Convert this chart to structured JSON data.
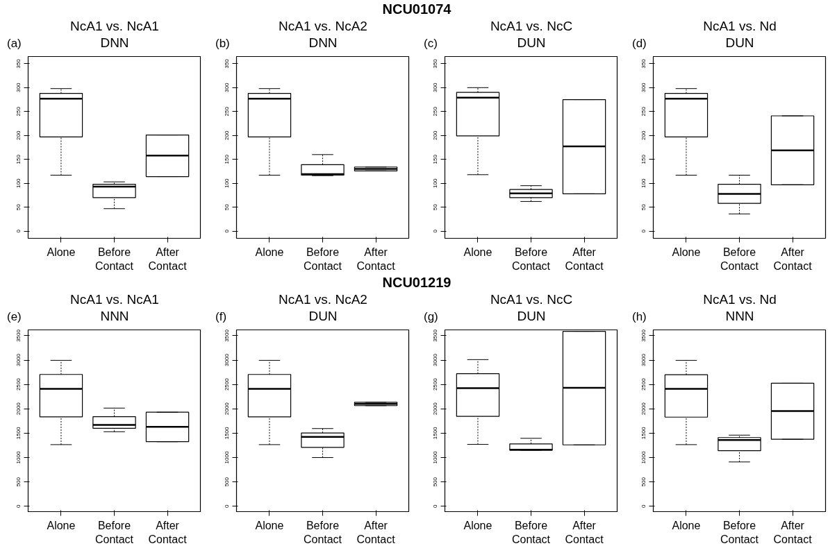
{
  "chart_data": [
    {
      "type": "box",
      "title": "NcA1 vs. NcA1",
      "subtitle": "DNN",
      "annotations": [
        "NCU01074",
        "(a)"
      ],
      "categories": [
        "Alone",
        "Before\nContact",
        "After\nContact"
      ],
      "ylim": [
        -15,
        365
      ],
      "yticks": [
        0,
        50,
        100,
        150,
        200,
        250,
        300,
        350
      ],
      "boxes": [
        {
          "low": 117,
          "q1": 197,
          "median": 277,
          "q3": 288,
          "high": 298
        },
        {
          "low": 47,
          "q1": 70,
          "median": 93,
          "q3": 98,
          "high": 103
        },
        {
          "low": 114,
          "q1": 114,
          "median": 158,
          "q3": 201,
          "high": 201
        }
      ]
    },
    {
      "type": "box",
      "title": "NcA1 vs. NcA2",
      "subtitle": "DNN",
      "annotations": [
        "(b)"
      ],
      "categories": [
        "Alone",
        "Before\nContact",
        "After\nContact"
      ],
      "ylim": [
        -15,
        365
      ],
      "yticks": [
        0,
        50,
        100,
        150,
        200,
        250,
        300,
        350
      ],
      "boxes": [
        {
          "low": 117,
          "q1": 197,
          "median": 277,
          "q3": 288,
          "high": 298
        },
        {
          "low": 116,
          "q1": 117,
          "median": 119,
          "q3": 139,
          "high": 160
        },
        {
          "low": 126,
          "q1": 126,
          "median": 130,
          "q3": 134,
          "high": 134
        }
      ]
    },
    {
      "type": "box",
      "title": "NcA1 vs. NcC",
      "subtitle": "DUN",
      "annotations": [
        "(c)"
      ],
      "categories": [
        "Alone",
        "Before\nContact",
        "After\nContact"
      ],
      "ylim": [
        -15,
        365
      ],
      "yticks": [
        0,
        50,
        100,
        150,
        200,
        250,
        300,
        350
      ],
      "boxes": [
        {
          "low": 118,
          "q1": 199,
          "median": 279,
          "q3": 290,
          "high": 300
        },
        {
          "low": 62,
          "q1": 70,
          "median": 79,
          "q3": 87,
          "high": 95
        },
        {
          "low": 78,
          "q1": 78,
          "median": 177,
          "q3": 275,
          "high": 275
        }
      ]
    },
    {
      "type": "box",
      "title": "NcA1 vs. Nd",
      "subtitle": "DUN",
      "annotations": [
        "(d)"
      ],
      "categories": [
        "Alone",
        "Before\nContact",
        "After\nContact"
      ],
      "ylim": [
        -15,
        365
      ],
      "yticks": [
        0,
        50,
        100,
        150,
        200,
        250,
        300,
        350
      ],
      "boxes": [
        {
          "low": 117,
          "q1": 197,
          "median": 277,
          "q3": 288,
          "high": 298
        },
        {
          "low": 36,
          "q1": 58,
          "median": 78,
          "q3": 98,
          "high": 117
        },
        {
          "low": 97,
          "q1": 97,
          "median": 169,
          "q3": 241,
          "high": 241
        }
      ]
    },
    {
      "type": "box",
      "title": "NcA1 vs. NcA1",
      "subtitle": "NNN",
      "annotations": [
        "NCU01219",
        "(e)"
      ],
      "categories": [
        "Alone",
        "Before\nContact",
        "After\nContact"
      ],
      "ylim": [
        -110,
        3620
      ],
      "yticks": [
        0,
        500,
        1000,
        1500,
        2000,
        2500,
        3000,
        3500
      ],
      "boxes": [
        {
          "low": 1265,
          "q1": 1835,
          "median": 2410,
          "q3": 2705,
          "high": 2995
        },
        {
          "low": 1530,
          "q1": 1600,
          "median": 1670,
          "q3": 1840,
          "high": 2015
        },
        {
          "low": 1325,
          "q1": 1325,
          "median": 1630,
          "q3": 1930,
          "high": 1930
        }
      ]
    },
    {
      "type": "box",
      "title": "NcA1 vs. NcA2",
      "subtitle": "DUN",
      "annotations": [
        "(f)"
      ],
      "categories": [
        "Alone",
        "Before\nContact",
        "After\nContact"
      ],
      "ylim": [
        -110,
        3620
      ],
      "yticks": [
        0,
        500,
        1000,
        1500,
        2000,
        2500,
        3000,
        3500
      ],
      "boxes": [
        {
          "low": 1265,
          "q1": 1835,
          "median": 2410,
          "q3": 2705,
          "high": 2995
        },
        {
          "low": 1000,
          "q1": 1210,
          "median": 1425,
          "q3": 1505,
          "high": 1595
        },
        {
          "low": 2065,
          "q1": 2065,
          "median": 2100,
          "q3": 2135,
          "high": 2135
        }
      ]
    },
    {
      "type": "box",
      "title": "NcA1 vs. NcC",
      "subtitle": "DUN",
      "annotations": [
        "(g)"
      ],
      "categories": [
        "Alone",
        "Before\nContact",
        "After\nContact"
      ],
      "ylim": [
        -110,
        3620
      ],
      "yticks": [
        0,
        500,
        1000,
        1500,
        2000,
        2500,
        3000,
        3500
      ],
      "boxes": [
        {
          "low": 1270,
          "q1": 1845,
          "median": 2425,
          "q3": 2720,
          "high": 3010
        },
        {
          "low": 1150,
          "q1": 1150,
          "median": 1160,
          "q3": 1280,
          "high": 1395
        },
        {
          "low": 1260,
          "q1": 1260,
          "median": 2430,
          "q3": 3590,
          "high": 3590
        }
      ]
    },
    {
      "type": "box",
      "title": "NcA1 vs. Nd",
      "subtitle": "NNN",
      "annotations": [
        "(h)"
      ],
      "categories": [
        "Alone",
        "Before\nContact",
        "After\nContact"
      ],
      "ylim": [
        -110,
        3620
      ],
      "yticks": [
        0,
        500,
        1000,
        1500,
        2000,
        2500,
        3000,
        3500
      ],
      "boxes": [
        {
          "low": 1265,
          "q1": 1830,
          "median": 2410,
          "q3": 2700,
          "high": 2995
        },
        {
          "low": 910,
          "q1": 1140,
          "median": 1360,
          "q3": 1410,
          "high": 1460
        },
        {
          "low": 1375,
          "q1": 1375,
          "median": 1955,
          "q3": 2525,
          "high": 2525
        }
      ]
    }
  ]
}
